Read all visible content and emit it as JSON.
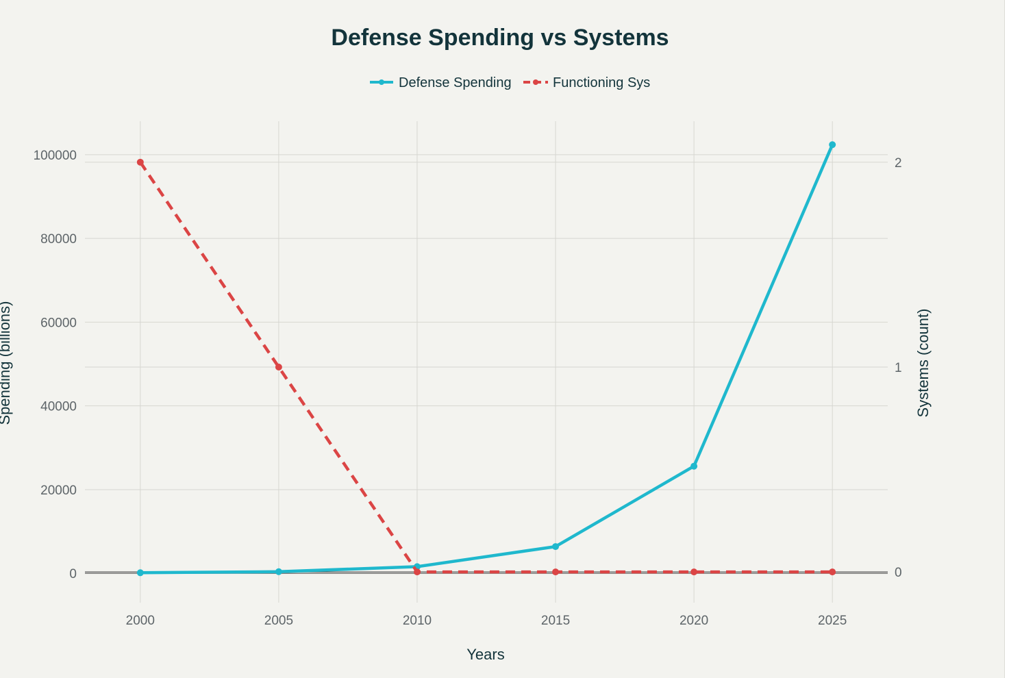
{
  "chart_data": {
    "type": "line",
    "title": "Defense Spending vs Systems",
    "xlabel": "Years",
    "ylabel": "Spending (billions)",
    "y2label": "Systems (count)",
    "x": [
      2000,
      2005,
      2010,
      2015,
      2020,
      2025
    ],
    "xlim": [
      1998,
      2027
    ],
    "xticks": [
      "2000",
      "2005",
      "2010",
      "2015",
      "2020",
      "2025"
    ],
    "ylim": [
      -7000,
      108000
    ],
    "yticks": [
      "0",
      "20000",
      "40000",
      "60000",
      "80000",
      "100000"
    ],
    "y2lim": [
      -0.15,
      2.2
    ],
    "y2ticks": [
      "0",
      "1",
      "2"
    ],
    "grid": true,
    "legend_position": "top-center",
    "series": [
      {
        "name": "Defense Spending",
        "axis": "left",
        "color": "#1fb8cd",
        "dash": "solid",
        "values": [
          150,
          400,
          1600,
          6400,
          25600,
          102400
        ]
      },
      {
        "name": "Functioning Sys",
        "axis": "right",
        "color": "#db4545",
        "dash": "dashed",
        "values": [
          2,
          1,
          0,
          0,
          0,
          0
        ]
      }
    ]
  }
}
